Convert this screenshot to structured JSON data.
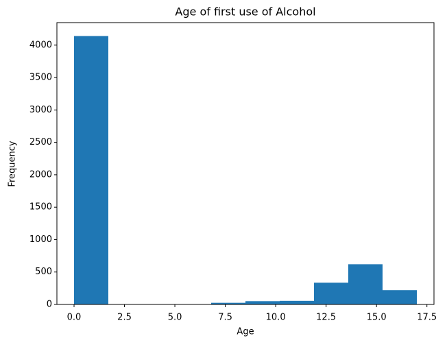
{
  "chart_data": {
    "type": "histogram",
    "title": "Age of first use of Alcohol",
    "x_label": "Age",
    "y_label": "Frequency",
    "bins": [
      0,
      1.7,
      3.4,
      5.1,
      6.8,
      8.5,
      10.2,
      11.9,
      13.6,
      15.3,
      17
    ],
    "values": [
      4140,
      5,
      5,
      5,
      25,
      50,
      55,
      335,
      620,
      220
    ],
    "color": "#1f77b4",
    "xlim": [
      -0.85,
      17.85
    ],
    "xticks": [
      {
        "value": 0,
        "label": "0.0"
      },
      {
        "value": 2.5,
        "label": "2.5"
      },
      {
        "value": 5,
        "label": "5.0"
      },
      {
        "value": 7.5,
        "label": "7.5"
      },
      {
        "value": 10,
        "label": "10.0"
      },
      {
        "value": 12.5,
        "label": "12.5"
      },
      {
        "value": 15,
        "label": "15.0"
      },
      {
        "value": 17.5,
        "label": "17.5"
      }
    ],
    "ylim": [
      0,
      4347
    ],
    "yticks": [
      0,
      500,
      1000,
      1500,
      2000,
      2500,
      3000,
      3500,
      4000
    ],
    "grid": false
  }
}
